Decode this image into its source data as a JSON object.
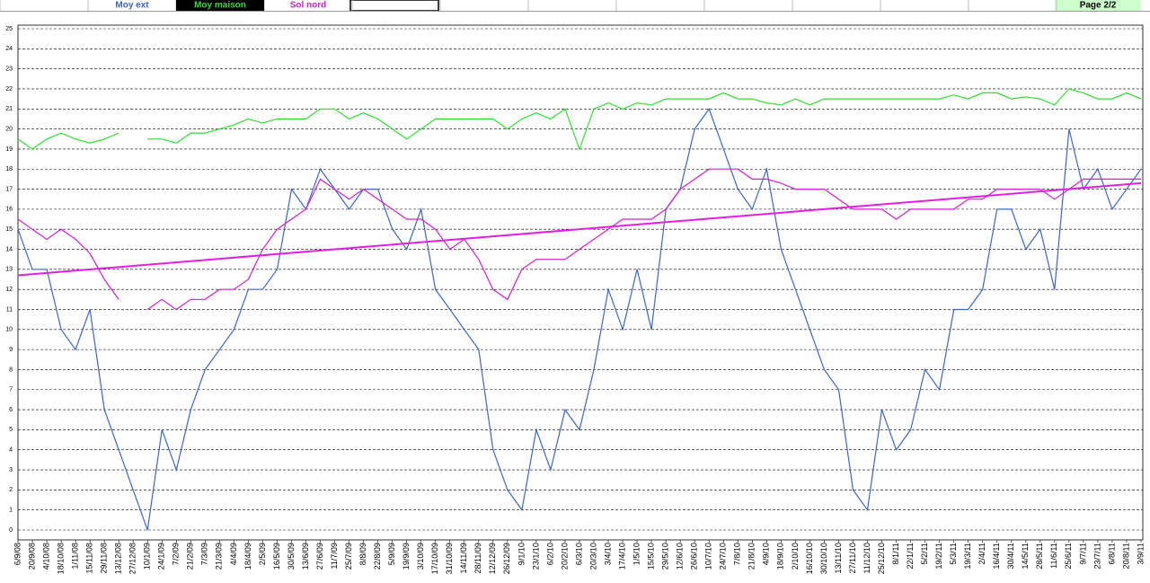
{
  "header": {
    "page": "Page 2/2"
  },
  "chart_data": {
    "type": "line",
    "categories": [
      "6/9/08",
      "20/9/08",
      "4/10/08",
      "18/10/08",
      "1/11/08",
      "15/11/08",
      "29/11/08",
      "13/12/08",
      "27/12/08",
      "10/1/09",
      "24/1/09",
      "7/2/09",
      "21/2/09",
      "7/3/09",
      "21/3/09",
      "4/4/09",
      "18/4/09",
      "2/5/09",
      "16/5/09",
      "30/5/09",
      "13/6/09",
      "27/6/09",
      "11/7/09",
      "25/7/09",
      "8/8/09",
      "22/8/09",
      "5/9/09",
      "19/9/09",
      "3/10/09",
      "17/10/09",
      "31/10/09",
      "14/11/09",
      "28/11/09",
      "12/12/09",
      "26/12/09",
      "9/1/10",
      "23/1/10",
      "6/2/10",
      "20/2/10",
      "6/3/10",
      "20/3/10",
      "3/4/10",
      "17/4/10",
      "1/5/10",
      "15/5/10",
      "29/5/10",
      "12/6/10",
      "26/6/10",
      "10/7/10",
      "24/7/10",
      "7/8/10",
      "21/8/10",
      "4/9/10",
      "18/9/10",
      "2/10/10",
      "16/10/10",
      "30/10/10",
      "13/11/10",
      "27/11/10",
      "11/12/10",
      "25/12/10",
      "8/1/11",
      "22/1/11",
      "5/2/11",
      "19/2/11",
      "5/3/11",
      "19/3/11",
      "2/4/11",
      "16/4/11",
      "30/4/11",
      "14/5/11",
      "28/5/11",
      "11/6/11",
      "25/6/11",
      "9/7/11",
      "23/7/11",
      "6/8/11",
      "20/8/11",
      "3/9/11"
    ],
    "series": [
      {
        "name": "Moy ext",
        "color": "#3a66c8",
        "values": [
          15,
          13,
          13,
          10,
          9,
          11,
          6,
          4,
          2,
          0,
          5,
          3,
          6,
          8,
          9,
          10,
          12,
          12,
          13,
          17,
          16,
          18,
          17,
          16,
          17,
          17,
          15,
          14,
          16,
          12,
          11,
          10,
          9,
          4,
          2,
          1,
          5,
          3,
          6,
          5,
          8,
          12,
          10,
          13,
          10,
          16,
          17,
          20,
          21,
          19,
          17,
          16,
          18,
          14,
          12,
          10,
          8,
          7,
          2,
          1,
          6,
          4,
          5,
          8,
          7,
          11,
          11,
          12,
          16,
          16,
          14,
          15,
          12,
          20,
          17,
          18,
          16,
          17,
          18
        ]
      },
      {
        "name": "Moy maison",
        "color": "#33dd33",
        "values": [
          19.5,
          19,
          19.5,
          19.8,
          19.5,
          19.3,
          19.5,
          19.8,
          null,
          19.5,
          19.5,
          19.3,
          19.8,
          19.8,
          20,
          20.2,
          20.5,
          20.3,
          20.5,
          20.5,
          20.5,
          21,
          21,
          20.5,
          20.8,
          20.5,
          20,
          19.5,
          20,
          20.5,
          20.5,
          20.5,
          20.5,
          20.5,
          20,
          20.5,
          20.8,
          20.5,
          21,
          19,
          21,
          21.3,
          21,
          21.3,
          21.2,
          21.5,
          21.5,
          21.5,
          21.5,
          21.8,
          21.5,
          21.5,
          21.3,
          21.2,
          21.5,
          21.2,
          21.5,
          21.5,
          21.5,
          21.5,
          21.5,
          21.5,
          21.5,
          21.5,
          21.5,
          21.7,
          21.5,
          21.8,
          21.8,
          21.5,
          21.6,
          21.5,
          21.2,
          22,
          21.8,
          21.5,
          21.5,
          21.8,
          21.5
        ]
      },
      {
        "name": "Sol nord",
        "color": "#d020d0",
        "values": [
          15.5,
          15,
          14.5,
          15,
          14.5,
          13.8,
          12.5,
          11.5,
          null,
          11,
          11.5,
          11,
          11.5,
          11.5,
          12,
          12,
          12.5,
          14,
          15,
          15.5,
          16,
          17.5,
          17,
          16.5,
          17,
          16.5,
          16,
          15.5,
          15.5,
          15,
          14,
          14.5,
          13.5,
          12,
          11.5,
          13,
          13.5,
          13.5,
          13.5,
          14,
          14.5,
          15,
          15.5,
          15.5,
          15.5,
          16,
          17,
          17.5,
          18,
          18,
          18,
          17.5,
          17.5,
          17.3,
          17,
          17,
          17,
          16.5,
          16,
          16,
          16,
          15.5,
          16,
          16,
          16,
          16,
          16.5,
          16.5,
          17,
          17,
          17,
          17,
          16.5,
          17,
          17.5,
          17.5,
          17.5,
          17.5,
          17.5
        ]
      }
    ],
    "trendline": {
      "color": "#e020e0",
      "values": [
        12.7,
        17.3
      ]
    },
    "ylim": [
      -0.5,
      25
    ],
    "yticks": [
      0,
      1,
      2,
      3,
      4,
      5,
      6,
      7,
      8,
      9,
      10,
      11,
      12,
      13,
      14,
      15,
      16,
      17,
      18,
      19,
      20,
      21,
      22,
      23,
      24,
      25
    ],
    "grid": true
  }
}
